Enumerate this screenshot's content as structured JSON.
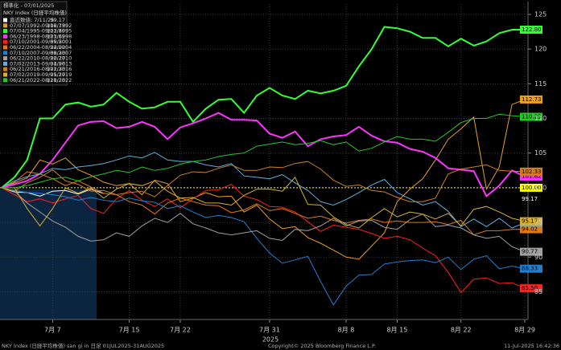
{
  "chart_data": {
    "type": "line",
    "title": "標準化 - 07/01/2025",
    "subtitle": "NKY Index (日経平均株価)",
    "xlabel": "2025",
    "categories": [
      null,
      null,
      null,
      null,
      "7月 7",
      null,
      null,
      null,
      null,
      null,
      "7月 15",
      null,
      null,
      null,
      "7月 22",
      null,
      null,
      null,
      null,
      null,
      null,
      "7月 31",
      null,
      null,
      null,
      null,
      null,
      "8月 8",
      null,
      null,
      null,
      "8月 15",
      null,
      null,
      null,
      null,
      "8月 22",
      null,
      null,
      null,
      null,
      "8月 29"
    ],
    "ylim": [
      81,
      126.5
    ],
    "yticks": [
      85,
      90,
      95,
      100,
      105,
      110,
      115,
      120,
      125
    ],
    "grid": true,
    "reference": {
      "value": 100,
      "label": "100.00",
      "color": "#ffff00"
    },
    "series": [
      {
        "name": "直近数値: 7/11/25",
        "last_label": "99.17",
        "color": "#ffffff",
        "values": [
          100,
          99.4,
          99.3,
          98.8,
          99.5,
          99.6,
          99.1,
          99.8,
          99.17,
          null,
          null,
          null,
          null,
          null,
          null,
          null,
          null,
          null,
          null,
          null,
          null,
          null,
          null,
          null,
          null,
          null,
          null,
          null,
          null,
          null,
          null,
          null,
          null,
          null,
          null,
          null,
          null,
          null,
          null,
          null,
          null,
          null
        ]
      },
      {
        "name": "07/07/1992-09/06/1992",
        "last_label": "112.73",
        "color": "#e8a020",
        "values": [
          100,
          100.7,
          101.4,
          104,
          103.4,
          104.3,
          102.6,
          101.8,
          100.8,
          100.3,
          100.6,
          99,
          101.1,
          100.6,
          98,
          98.5,
          99.3,
          98.7,
          98.8,
          96.5,
          97.5,
          95.5,
          94.1,
          94.4,
          92.8,
          92,
          91,
          90,
          89.7,
          91.6,
          93.5,
          98,
          99.8,
          101.3,
          104,
          107,
          108.5,
          110.2,
          99.8,
          103,
          112,
          112.73
        ]
      },
      {
        "name": "07/04/1995-09/03/1995",
        "last_label": "122.80",
        "color": "#33ff33",
        "values": [
          100,
          101.5,
          104,
          110,
          110,
          112,
          112.3,
          111.7,
          112,
          113.7,
          112.4,
          111.4,
          111.6,
          112.4,
          112.4,
          109.5,
          111.4,
          112.7,
          112.8,
          110.8,
          113.3,
          114.4,
          113.3,
          112.8,
          114,
          113.6,
          114,
          114.7,
          117.5,
          120,
          123.2,
          123,
          122.5,
          121.6,
          121.6,
          120.4,
          121.5,
          120.5,
          121.1,
          122.3,
          122.8,
          122.8
        ]
      },
      {
        "name": "06/23/1998-08/23/1998",
        "last_label": "101.62",
        "color": "#ff33ff",
        "values": [
          100,
          100.5,
          101,
          102,
          104,
          106.5,
          109,
          109.5,
          109.6,
          108.6,
          108.8,
          109.5,
          108.8,
          107,
          108.7,
          109.3,
          110,
          110.8,
          109.8,
          109.8,
          109.7,
          107.8,
          107.2,
          108.1,
          106,
          107,
          107.4,
          107.6,
          108.8,
          107.5,
          106.7,
          106.5,
          105.6,
          105.2,
          104.3,
          102.8,
          102.6,
          102.4,
          98.8,
          100.3,
          102.5,
          101.62
        ]
      },
      {
        "name": "07/10/2001-09/09/2001",
        "last_label": "85.50",
        "color": "#ff2020",
        "values": [
          100,
          99,
          98,
          98.4,
          97.8,
          98.4,
          98.9,
          97,
          96.3,
          98.4,
          99.6,
          98.2,
          97.3,
          98.4,
          97.1,
          98.4,
          99.6,
          99.7,
          100.5,
          98.8,
          98.3,
          97.3,
          97.2,
          96.5,
          95.1,
          93.7,
          94.6,
          94.3,
          94,
          93.4,
          92.7,
          93,
          92.5,
          91.3,
          90.2,
          87.8,
          84.9,
          86.8,
          87,
          86.2,
          86.3,
          85.5
        ]
      },
      {
        "name": "06/22/2004-08/22/2004",
        "last_label": "94.02",
        "color": "#e07a10",
        "values": [
          100,
          100.8,
          102.3,
          102,
          101.3,
          100.3,
          101,
          100.1,
          99.2,
          99,
          98,
          97.5,
          96.2,
          97.8,
          98.5,
          98,
          97.5,
          97.4,
          96.4,
          96.8,
          97.7,
          96.7,
          97,
          96.3,
          95.6,
          95.9,
          95.3,
          94.9,
          95.3,
          95.5,
          95,
          95.2,
          95,
          95,
          95.1,
          94.7,
          95.3,
          93.2,
          93.8,
          93.8,
          94,
          94.02
        ]
      },
      {
        "name": "07/10/2007-09/09/2007",
        "last_label": "88.33",
        "color": "#1e7fd0",
        "values": [
          100,
          99.6,
          99.3,
          99.2,
          99,
          98.7,
          98.2,
          98.6,
          98.2,
          98,
          98.5,
          98.1,
          97.9,
          97,
          97.4,
          96.5,
          95.7,
          96,
          95.7,
          95.1,
          92.7,
          90.6,
          89.1,
          89.6,
          90.1,
          86.5,
          83.1,
          85.8,
          87.4,
          87.5,
          89,
          89.3,
          89.5,
          89.6,
          89.2,
          90,
          88.2,
          89.7,
          90.2,
          88.3,
          88.7,
          88.33
        ]
      },
      {
        "name": "06/22/2010-08/22/2010",
        "last_label": "90.77",
        "color": "#a0a0a0",
        "values": [
          100,
          99.5,
          97.8,
          96.5,
          95.2,
          94.3,
          93,
          92.3,
          92.5,
          93.5,
          93,
          94.5,
          95.6,
          95,
          96.3,
          94.8,
          94.2,
          93.5,
          93.2,
          93.5,
          93.8,
          92.7,
          92.4,
          94,
          93.8,
          94.5,
          95.6,
          94.5,
          95.2,
          95.3,
          94.3,
          94,
          95.4,
          96.2,
          94.4,
          94.6,
          94.2,
          93.2,
          92.7,
          93,
          91.5,
          90.77
        ]
      },
      {
        "name": "07/02/2013-09/01/2013",
        "last_label": "94.96",
        "color": "#5fb0e0",
        "values": [
          100,
          101,
          101.6,
          102,
          102.8,
          102.6,
          103,
          103.2,
          103.5,
          104,
          104.6,
          104.3,
          105.1,
          104,
          103.8,
          103.8,
          103.3,
          103,
          103.5,
          101.7,
          101.5,
          101.3,
          101.9,
          100.7,
          99.6,
          98,
          97.5,
          98.3,
          99.3,
          100.4,
          101.2,
          99.3,
          98.4,
          97.5,
          98,
          96.6,
          94.4,
          95.5,
          94.4,
          95.6,
          94.2,
          94.96
        ]
      },
      {
        "name": "06/21/2016-08/21/2016",
        "last_label": "102.33",
        "color": "#d0801a",
        "values": [
          100,
          99.5,
          100.7,
          101.5,
          102.6,
          101,
          100.5,
          99.5,
          99.6,
          99,
          99.3,
          99.5,
          98.7,
          100.3,
          101.8,
          102.3,
          102.2,
          102.8,
          103.3,
          102.5,
          102.5,
          103,
          102.9,
          103.5,
          103.8,
          102.7,
          101.1,
          100.2,
          100.4,
          99.6,
          99.4,
          98.6,
          98,
          98,
          98.5,
          102,
          102.7,
          103,
          103.3,
          102.5,
          102.4,
          102.33
        ]
      },
      {
        "name": "07/02/2019-09/01/2019",
        "last_label": "95.17",
        "color": "#d8b030",
        "values": [
          100,
          100,
          97,
          94.5,
          97,
          100,
          99.2,
          100,
          98.5,
          99.8,
          100.6,
          100.3,
          101,
          99.5,
          98.5,
          98.6,
          97.8,
          97.8,
          97.5,
          98.9,
          99.8,
          99.8,
          99.5,
          101.5,
          97.6,
          97.5,
          95.8,
          94.7,
          94.2,
          95.7,
          97,
          95.8,
          96.5,
          96.2,
          95.5,
          96.3,
          94.5,
          96.9,
          97.3,
          96.5,
          95.6,
          95.17
        ]
      },
      {
        "name": "06/21/2022-08/21/2022",
        "last_label": "110.23",
        "color": "#22cc22",
        "values": [
          100,
          100,
          100.3,
          100.8,
          101.3,
          101.5,
          101,
          101.6,
          102,
          102.5,
          102.2,
          103,
          102.5,
          102.8,
          103.4,
          103.8,
          104,
          104.5,
          104.8,
          105,
          106,
          106.3,
          106.6,
          106.2,
          106.4,
          106.8,
          106.2,
          106.6,
          105.3,
          105.7,
          106.6,
          107.4,
          107,
          107,
          106.7,
          108,
          109.4,
          110,
          110,
          110.6,
          110.4,
          110.23
        ]
      }
    ],
    "footer": {
      "left": "NKY Index (日経平均株価) san gi in  日足 01JUL2025-31AUG2025",
      "center": "Copyright© 2025 Bloomberg Finance L.P.",
      "right": "11-Jul-2025 16:42:36"
    }
  }
}
